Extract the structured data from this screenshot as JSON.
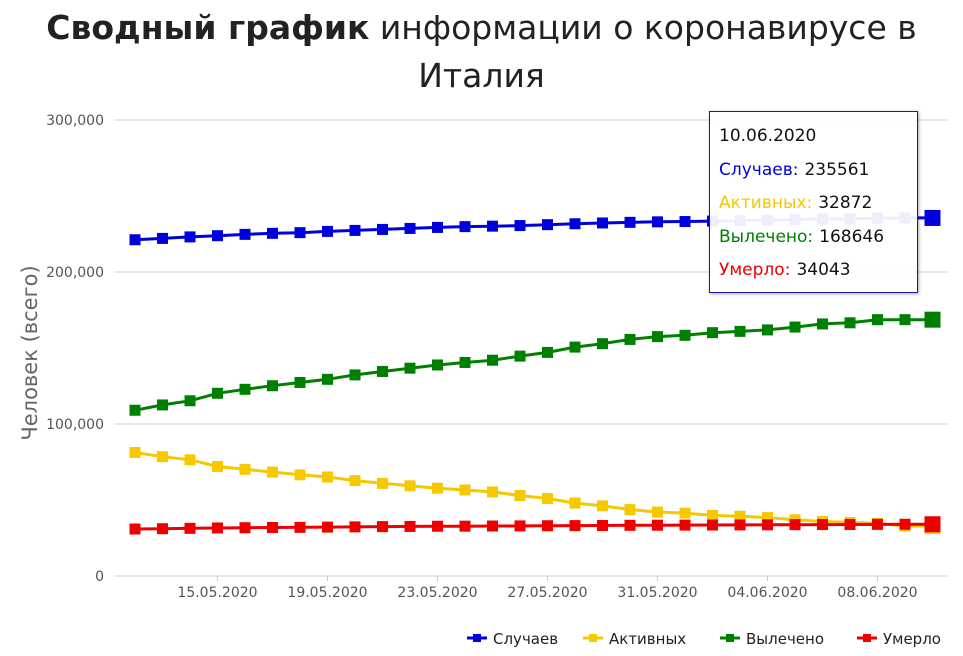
{
  "title": {
    "bold": "Сводный график",
    "rest": "информации о коронавирусе в Италия"
  },
  "colors": {
    "cases": "#0000dd",
    "active": "#f5c800",
    "recovered": "#008000",
    "deaths": "#ee0000",
    "grid": "#cccccc",
    "axis_text": "#555555"
  },
  "tooltip": {
    "date": "10.06.2020",
    "rows": [
      {
        "label": "Случаев:",
        "value": "235561",
        "color": "#0000dd"
      },
      {
        "label": "Активных:",
        "value": "32872",
        "color": "#f5c800"
      },
      {
        "label": "Вылечено:",
        "value": "168646",
        "color": "#008000"
      },
      {
        "label": "Умерло:",
        "value": "34043",
        "color": "#ee0000"
      }
    ]
  },
  "chart_data": {
    "type": "line",
    "ylabel": "Человек (всего)",
    "ylim": [
      0,
      300000
    ],
    "yticks": [
      0,
      100000,
      200000,
      300000
    ],
    "ytick_labels": [
      "0",
      "100,000",
      "200,000",
      "300,000"
    ],
    "xlim": [
      "2020-05-12",
      "2020-06-10"
    ],
    "xtick_labels": [
      "15.05.2020",
      "19.05.2020",
      "23.05.2020",
      "27.05.2020",
      "31.05.2020",
      "04.06.2020",
      "08.06.2020"
    ],
    "legend_position": "bottom-right",
    "x": [
      "12.05.2020",
      "13.05.2020",
      "14.05.2020",
      "15.05.2020",
      "16.05.2020",
      "17.05.2020",
      "18.05.2020",
      "19.05.2020",
      "20.05.2020",
      "21.05.2020",
      "22.05.2020",
      "23.05.2020",
      "24.05.2020",
      "25.05.2020",
      "26.05.2020",
      "27.05.2020",
      "28.05.2020",
      "29.05.2020",
      "30.05.2020",
      "31.05.2020",
      "01.06.2020",
      "02.06.2020",
      "03.06.2020",
      "04.06.2020",
      "05.06.2020",
      "06.06.2020",
      "07.06.2020",
      "08.06.2020",
      "09.06.2020",
      "10.06.2020"
    ],
    "series": [
      {
        "name": "Случаев",
        "color": "#0000dd",
        "values": [
          221216,
          222104,
          223096,
          223885,
          224760,
          225435,
          225886,
          226699,
          227364,
          228006,
          228658,
          229327,
          229858,
          230158,
          230555,
          231139,
          231732,
          232248,
          232664,
          232997,
          233197,
          233515,
          233836,
          234013,
          234531,
          234801,
          234998,
          235278,
          235561,
          235561
        ]
      },
      {
        "name": "Активных",
        "color": "#f5c800",
        "values": [
          81266,
          78457,
          76440,
          72070,
          70187,
          68351,
          66553,
          65129,
          62752,
          60960,
          59322,
          57752,
          56594,
          55300,
          52942,
          50966,
          47986,
          46175,
          43691,
          42075,
          41367,
          39893,
          39297,
          38429,
          36976,
          35877,
          35262,
          34730,
          32872,
          32872
        ]
      },
      {
        "name": "Вылечено",
        "color": "#008000",
        "values": [
          109039,
          112541,
          115288,
          120205,
          122810,
          125176,
          127326,
          129401,
          132282,
          134560,
          136720,
          138840,
          140479,
          141981,
          144658,
          147101,
          150604,
          152844,
          155633,
          157507,
          158355,
          160092,
          160938,
          161895,
          163781,
          165837,
          166584,
          168646,
          168646,
          168646
        ]
      },
      {
        "name": "Умерло",
        "color": "#ee0000",
        "values": [
          30911,
          31106,
          31368,
          31610,
          31763,
          31908,
          32007,
          32169,
          32330,
          32486,
          32616,
          32735,
          32785,
          32877,
          32955,
          33072,
          33142,
          33229,
          33340,
          33415,
          33475,
          33530,
          33601,
          33689,
          33774,
          33846,
          33899,
          33964,
          34043,
          34043
        ]
      }
    ]
  }
}
